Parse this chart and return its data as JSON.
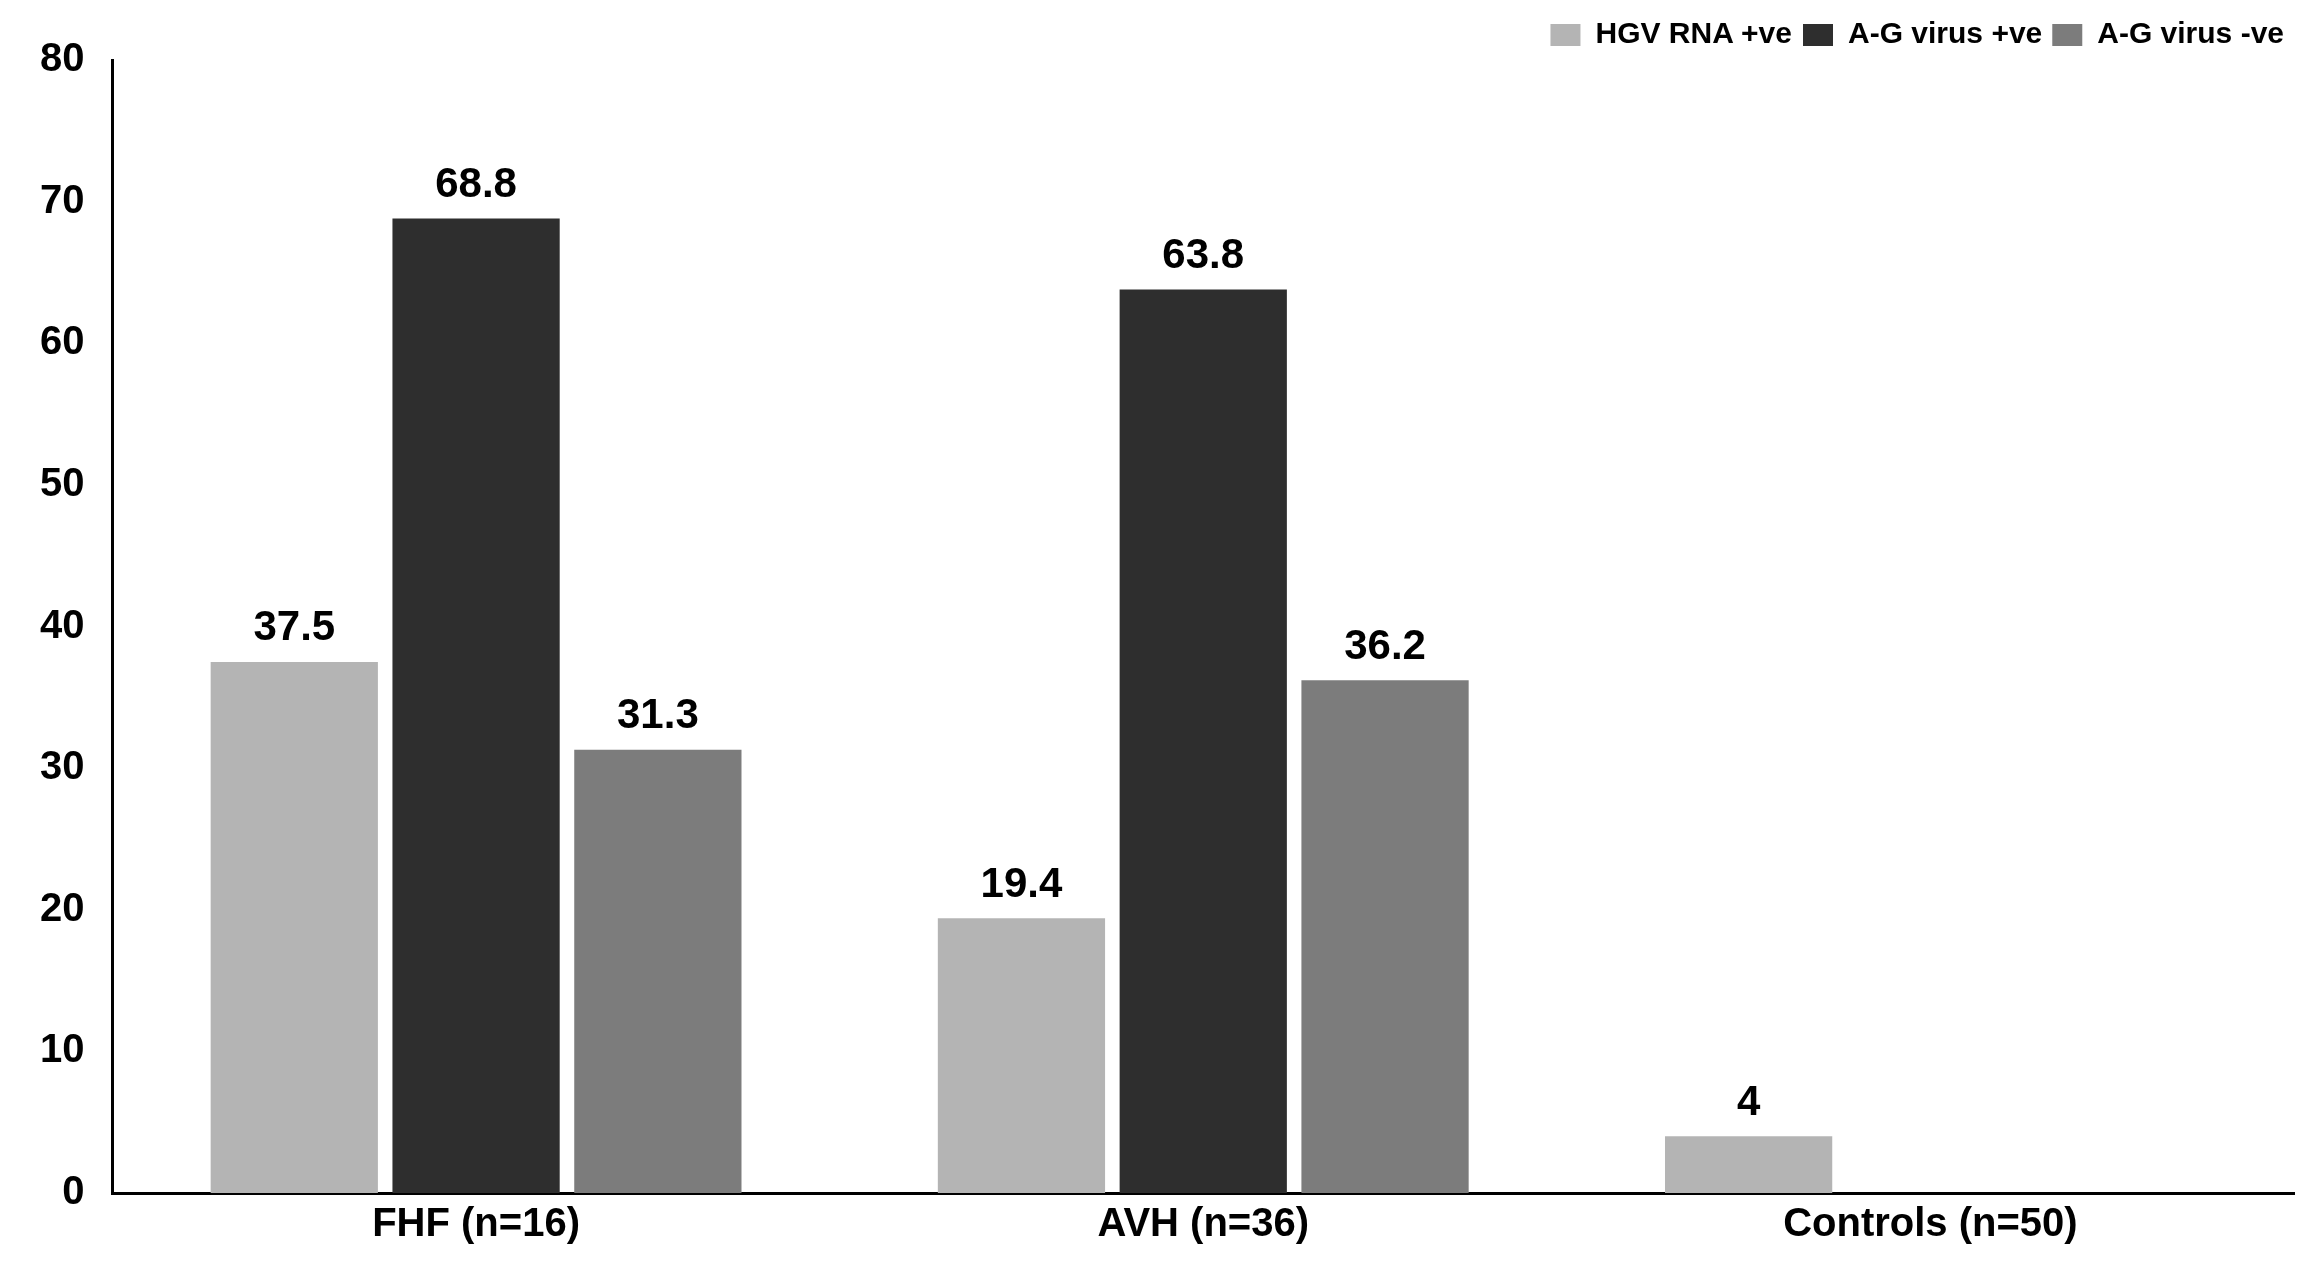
{
  "chart_data": {
    "type": "bar",
    "categories": [
      "FHF (n=16)",
      "AVH (n=36)",
      "Controls (n=50)"
    ],
    "series": [
      {
        "name": "HGV RNA +ve",
        "color": "#b4b4b4",
        "values": [
          37.5,
          19.4,
          4
        ]
      },
      {
        "name": "A-G virus +ve",
        "color": "#2e2e2e",
        "values": [
          68.8,
          63.8,
          null
        ]
      },
      {
        "name": "A-G virus -ve",
        "color": "#7c7c7c",
        "values": [
          31.3,
          36.2,
          null
        ]
      }
    ],
    "ylim": [
      0,
      80
    ],
    "yticks": [
      0,
      10,
      20,
      30,
      40,
      50,
      60,
      70,
      80
    ],
    "grid": false,
    "legend": "top right",
    "data_labels": true
  }
}
